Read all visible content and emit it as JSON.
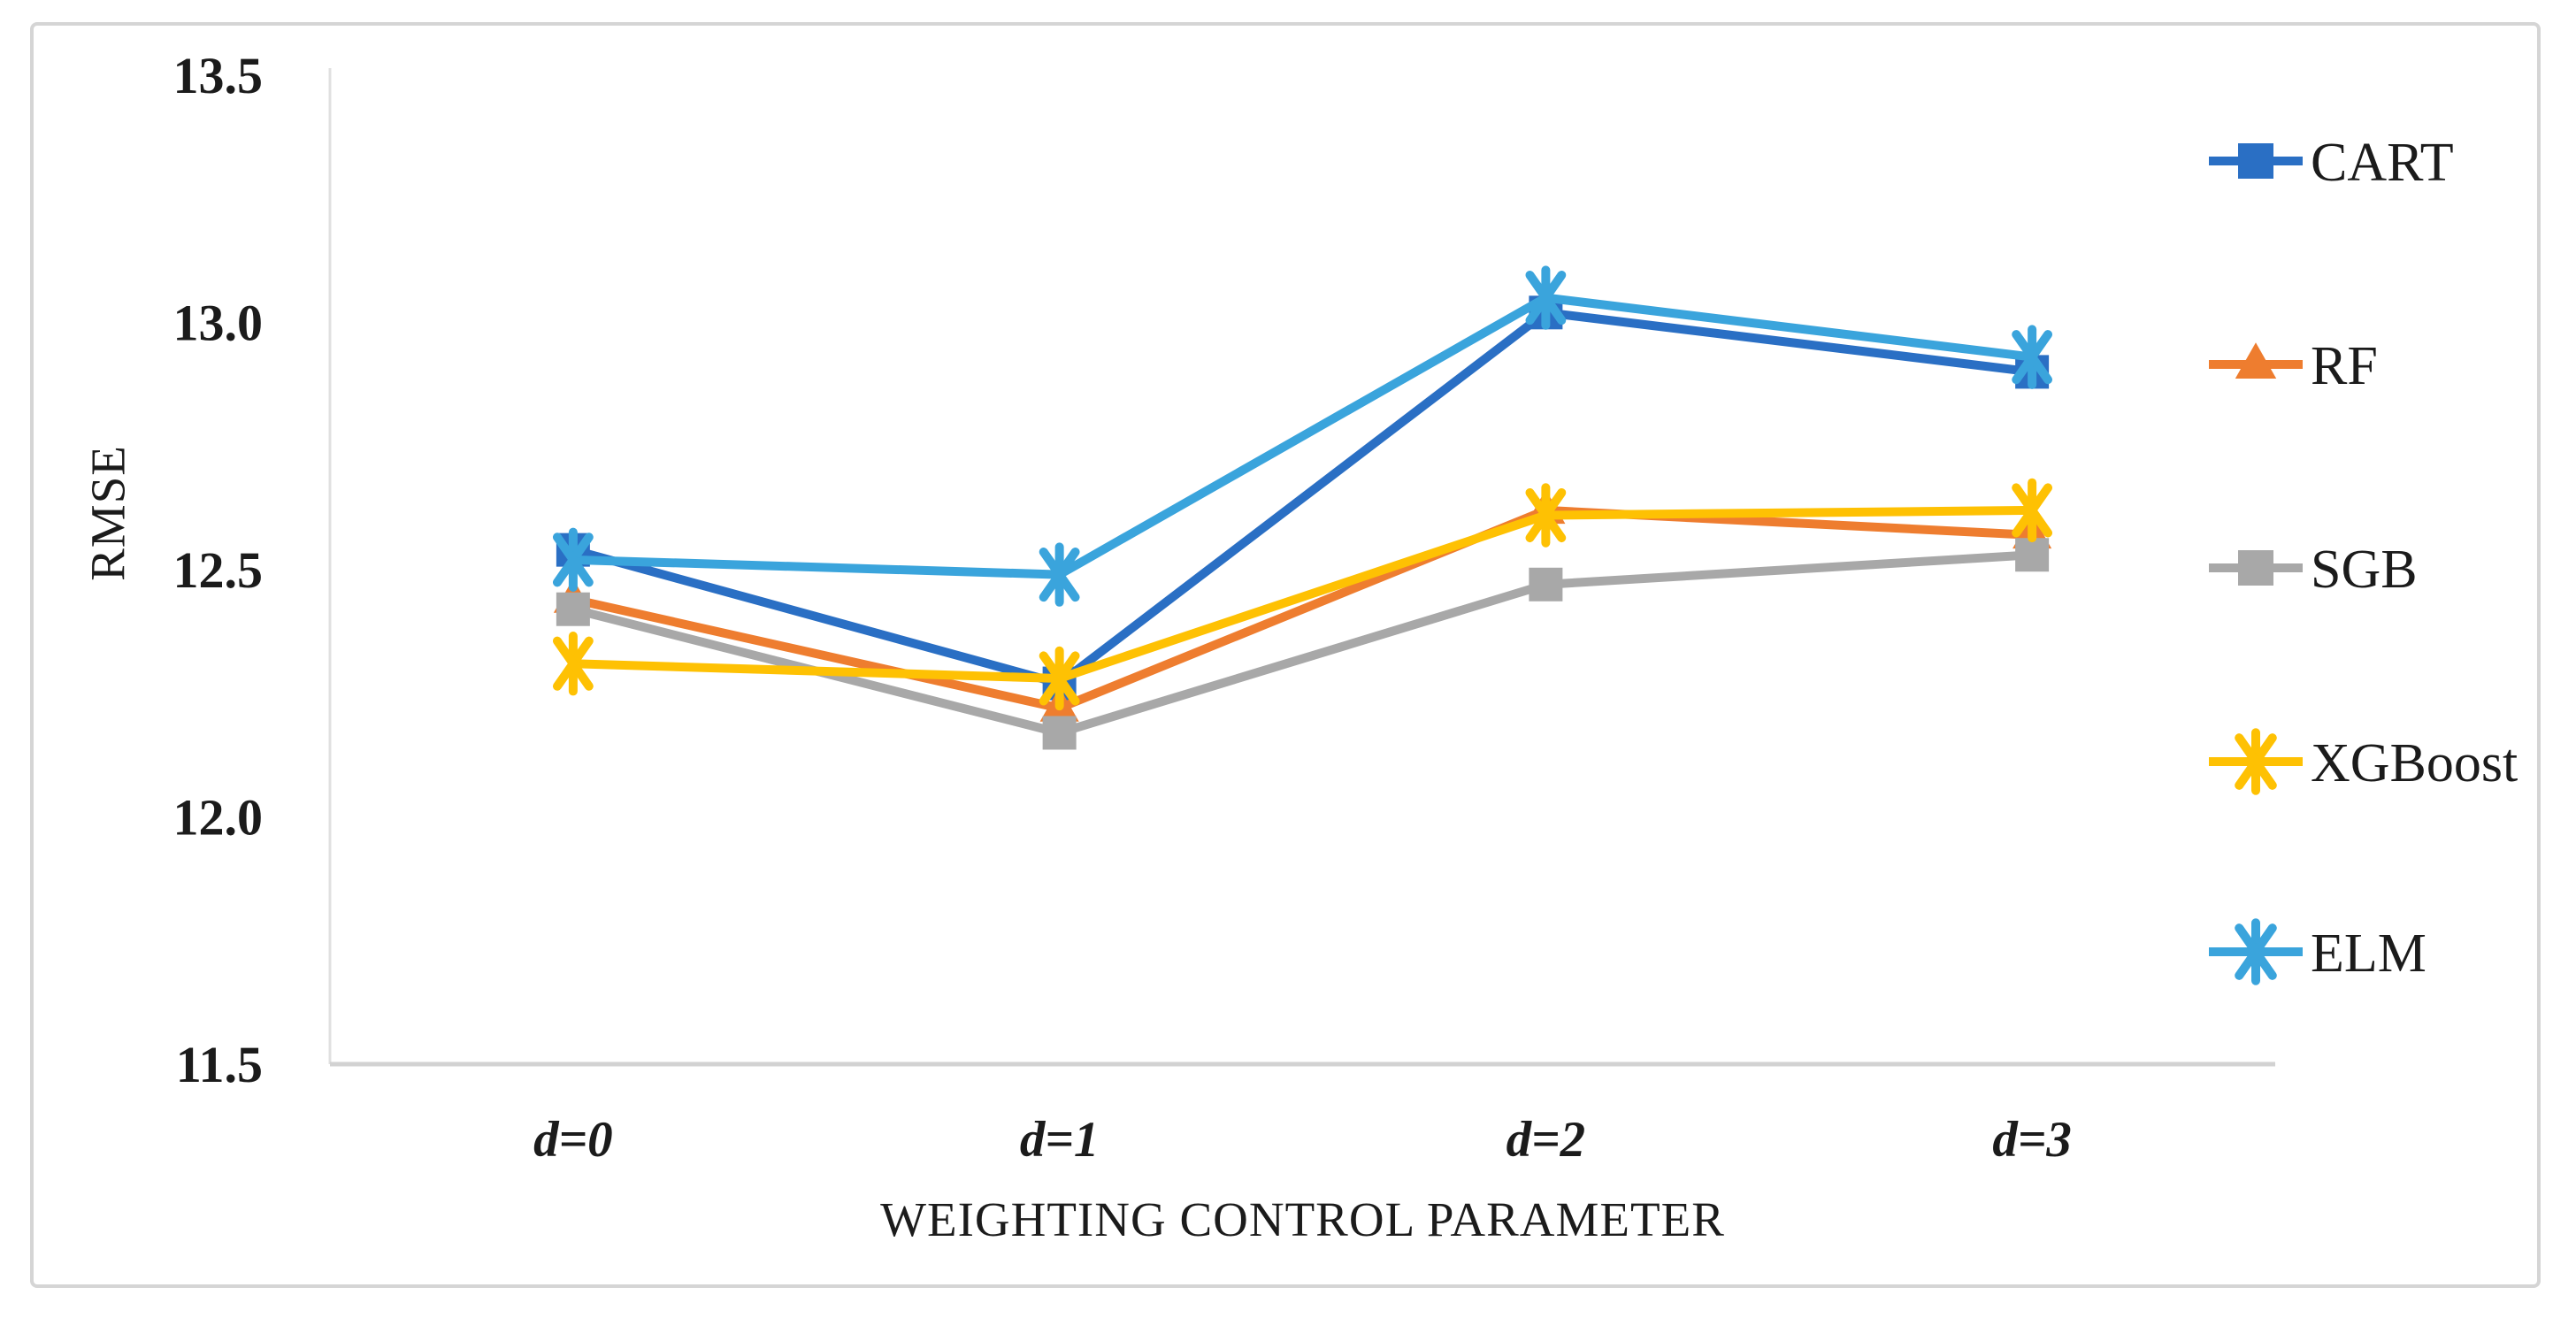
{
  "figure": {
    "background": "#ffffff",
    "border_color": "#d5d5d5",
    "axis_line_color": "#d9d9d9",
    "text_color": "#1b1b1b"
  },
  "chart_data": {
    "type": "line",
    "title": "",
    "xlabel": "WEIGHTING CONTROL PARAMETER",
    "ylabel": "RMSE",
    "categories": [
      "d=0",
      "d=1",
      "d=2",
      "d=3"
    ],
    "y_ticks": [
      "13.5",
      "13.0",
      "12.5",
      "12.0",
      "11.5"
    ],
    "ylim": [
      11.5,
      13.5
    ],
    "grid": false,
    "legend_position": "right",
    "series": [
      {
        "name": "CART",
        "color": "#2a6fc4",
        "marker": "square",
        "values": [
          12.54,
          12.27,
          13.02,
          12.9
        ]
      },
      {
        "name": "RF",
        "color": "#ee7d2f",
        "marker": "triangle",
        "values": [
          12.44,
          12.22,
          12.62,
          12.57
        ]
      },
      {
        "name": "SGB",
        "color": "#a8a8a8",
        "marker": "square",
        "values": [
          12.42,
          12.17,
          12.47,
          12.53
        ]
      },
      {
        "name": "XGBoost",
        "color": "#fec103",
        "marker": "asterisk",
        "values": [
          12.31,
          12.28,
          12.61,
          12.62
        ]
      },
      {
        "name": "ELM",
        "color": "#3aa4dc",
        "marker": "asterisk",
        "values": [
          12.52,
          12.49,
          13.05,
          12.93
        ]
      }
    ]
  }
}
